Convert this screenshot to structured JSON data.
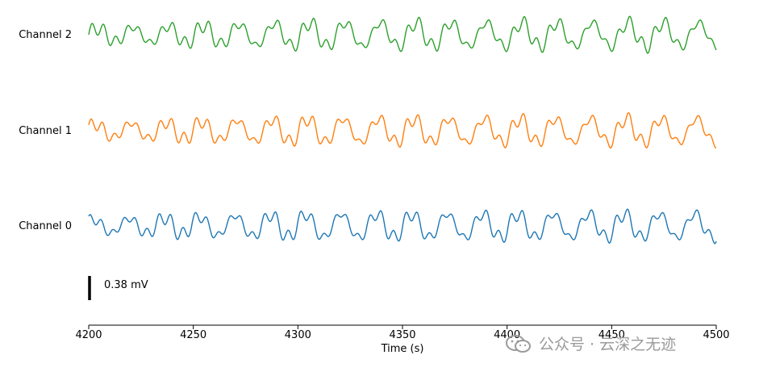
{
  "chart_data": {
    "type": "line",
    "title": "",
    "xlabel": "Time (s)",
    "ylabel": "",
    "xlim": [
      4200,
      4500
    ],
    "xticks": [
      4200,
      4250,
      4300,
      4350,
      4400,
      4450,
      4500
    ],
    "scale_bar": {
      "value": 0.38,
      "label": "0.38 mV"
    },
    "y_axis_visible": false,
    "grid": false,
    "series": [
      {
        "name": "Channel 2",
        "color": "#2ca02c",
        "base_period_s": 16.9,
        "harmonic_period_s": 5.6,
        "amp_mV": 0.19
      },
      {
        "name": "Channel 1",
        "color": "#ff7f0e",
        "base_period_s": 16.9,
        "harmonic_period_s": 5.6,
        "amp_mV": 0.19
      },
      {
        "name": "Channel 0",
        "color": "#1f77b4",
        "base_period_s": 16.9,
        "harmonic_period_s": 5.6,
        "amp_mV": 0.19
      }
    ]
  },
  "watermark": {
    "text": "公众号 · 云深之无迹",
    "icon": "wechat-logo"
  }
}
